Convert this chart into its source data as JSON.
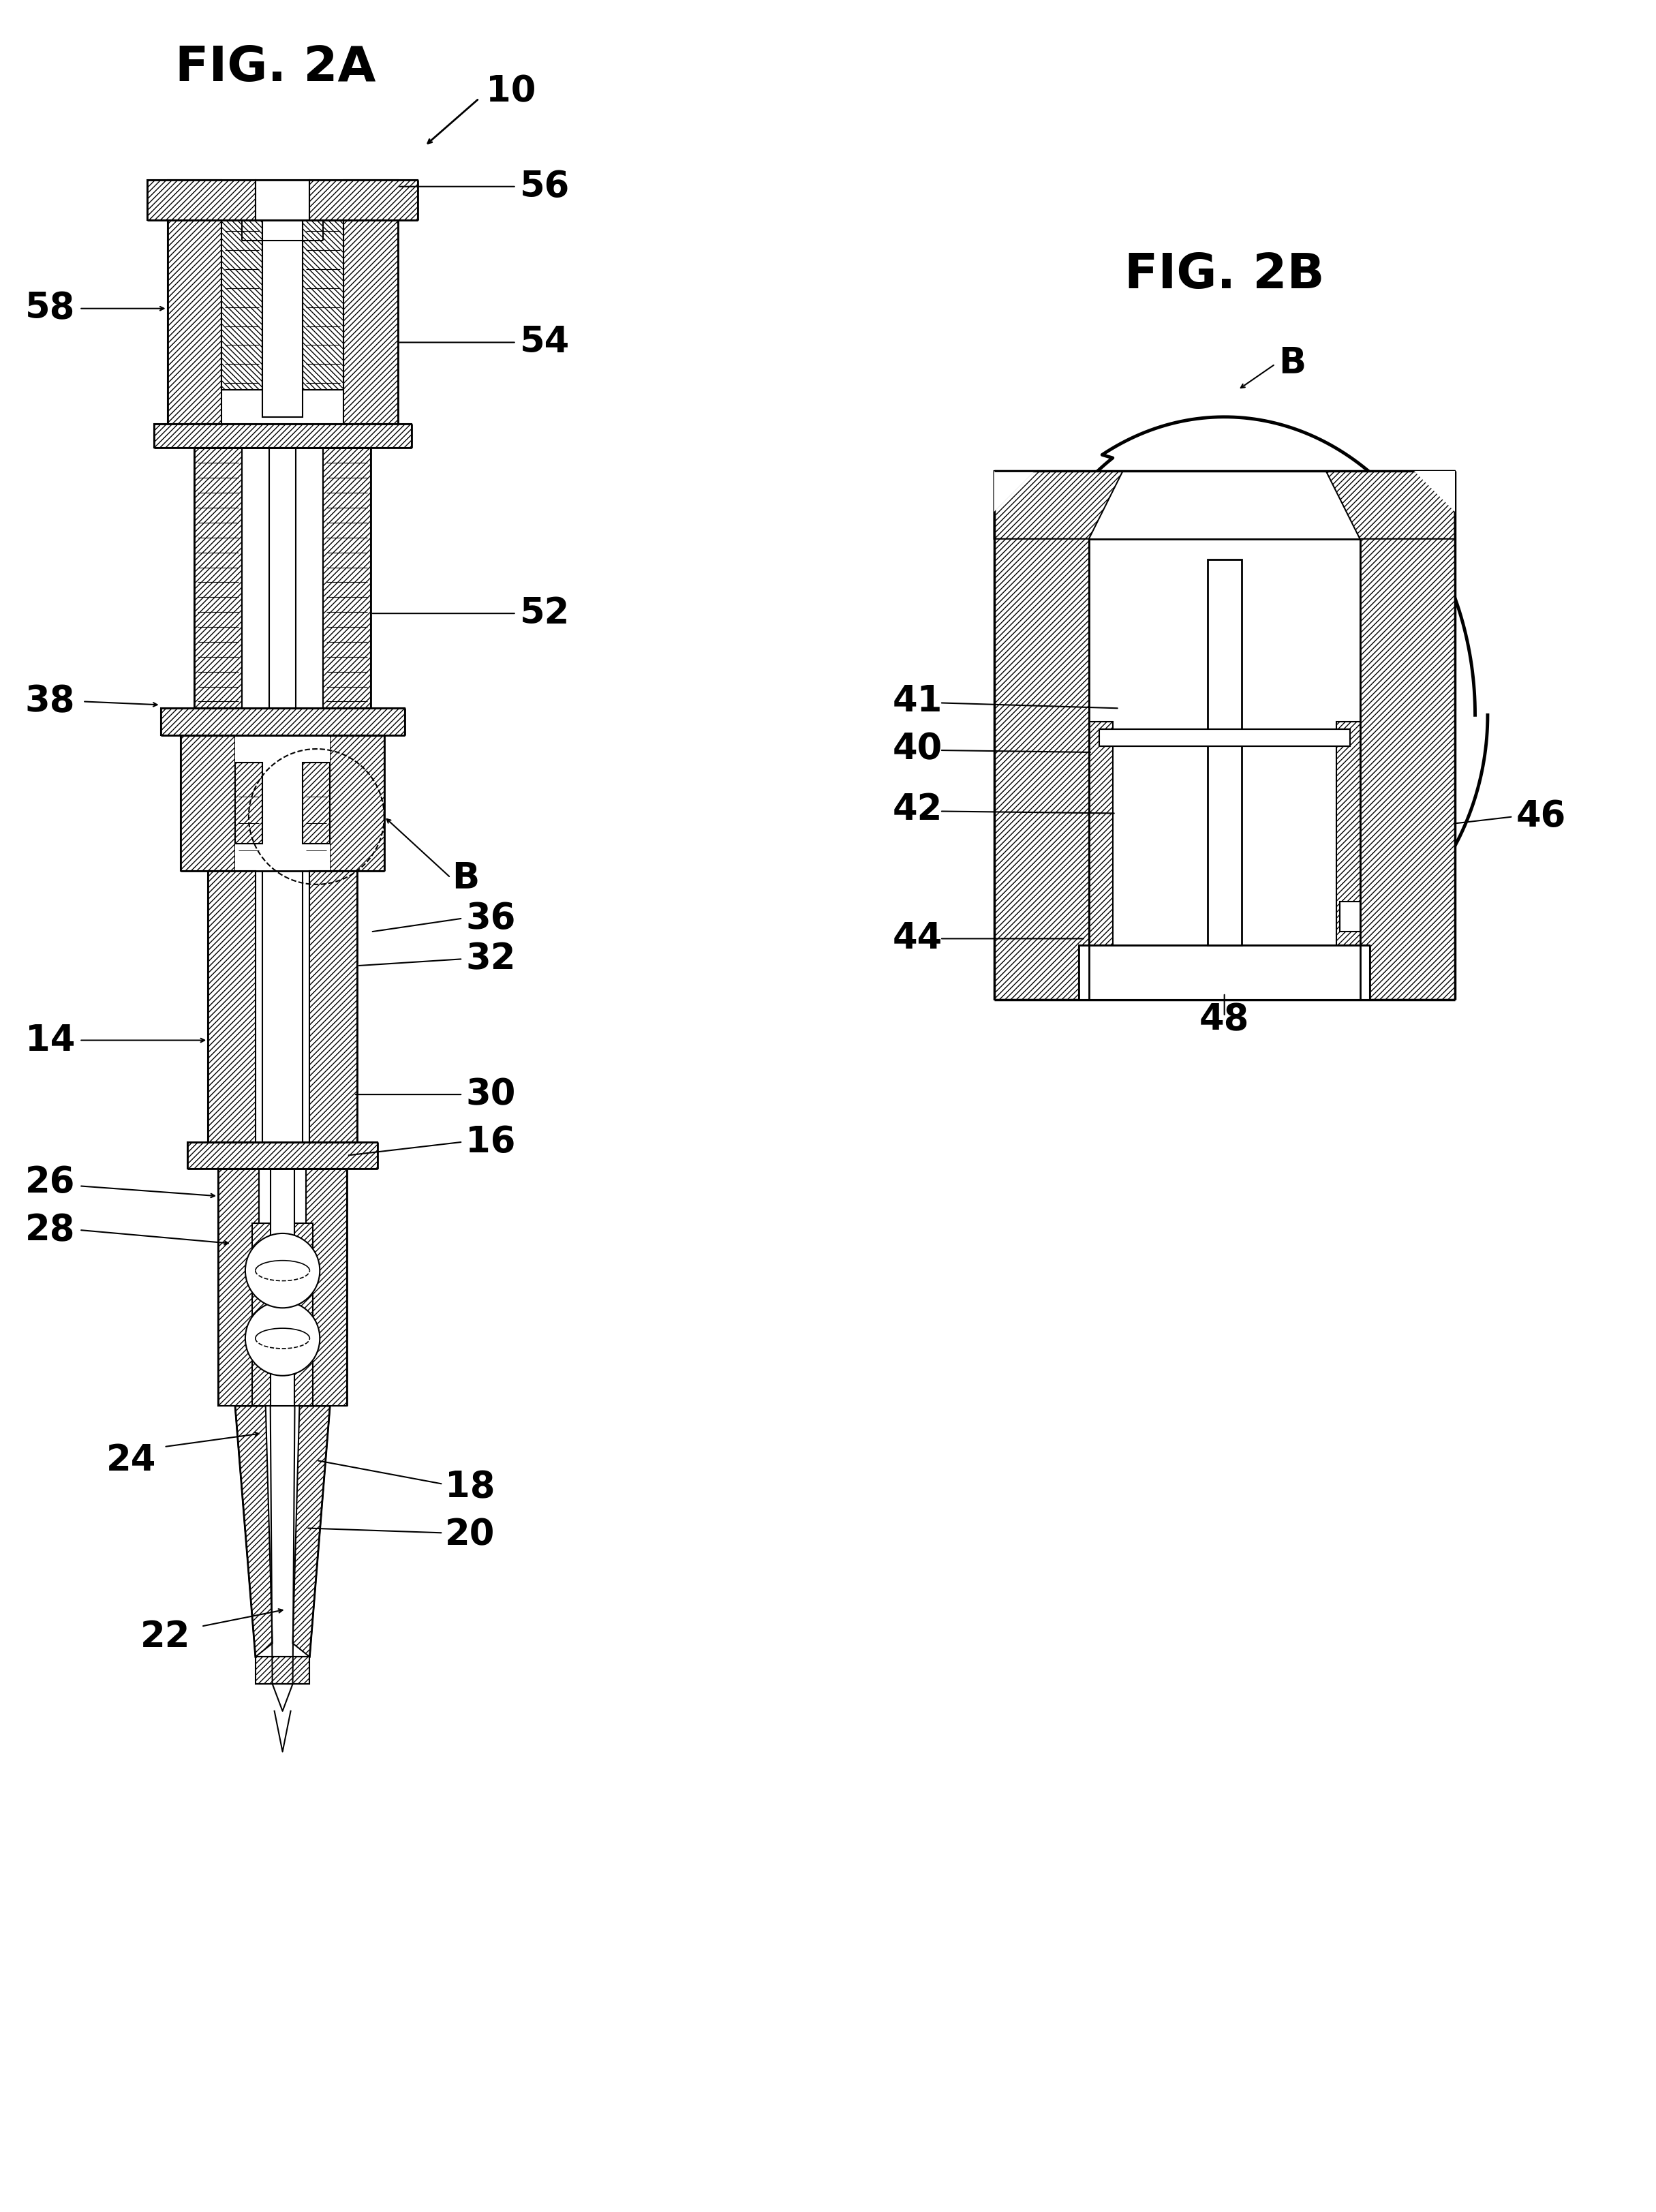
{
  "fig_title_2a": "FIG. 2A",
  "fig_title_2b": "FIG. 2B",
  "label_10": "10",
  "label_B_2a": "B",
  "label_58": "58",
  "label_56": "56",
  "label_54": "54",
  "label_38": "38",
  "label_52": "52",
  "label_14": "14",
  "label_36": "36",
  "label_32": "32",
  "label_26": "26",
  "label_30": "30",
  "label_28": "28",
  "label_16": "16",
  "label_24": "24",
  "label_18": "18",
  "label_20": "20",
  "label_22": "22",
  "label_41": "41",
  "label_40": "40",
  "label_42": "42",
  "label_44": "44",
  "label_46": "46",
  "label_48": "48",
  "label_B_2b": "B",
  "bg_color": "#ffffff",
  "line_color": "#000000",
  "title_fontsize": 52,
  "label_fontsize": 38
}
